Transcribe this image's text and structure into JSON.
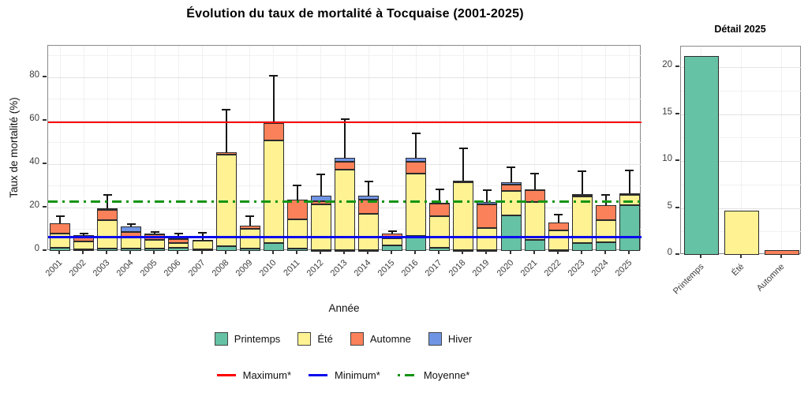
{
  "title": "Évolution du taux de mortalité à Tocquaise (2001-2025)",
  "chart_data": [
    {
      "type": "bar",
      "stacked": true,
      "title": "Évolution du taux de mortalité à Tocquaise (2001-2025)",
      "xlabel": "Année",
      "ylabel": "Taux de mortalité (%)",
      "ylim": [
        0,
        94.5
      ],
      "yticks": [
        0,
        20,
        40,
        60,
        80
      ],
      "grid": true,
      "legend_position": "bottom",
      "categories": [
        "2001",
        "2002",
        "2003",
        "2004",
        "2005",
        "2006",
        "2007",
        "2008",
        "2009",
        "2010",
        "2011",
        "2012",
        "2013",
        "2014",
        "2015",
        "2016",
        "2017",
        "2018",
        "2019",
        "2020",
        "2021",
        "2022",
        "2023",
        "2024",
        "2025"
      ],
      "series": [
        {
          "name": "Printemps",
          "color": "#66C2A5",
          "values": [
            1.5,
            0.8,
            1.0,
            1.0,
            1.0,
            1.3,
            0.7,
            2.0,
            1.0,
            3.5,
            1.0,
            0.5,
            0.5,
            0.5,
            2.5,
            7.0,
            1.5,
            0.5,
            0.5,
            16.5,
            5.0,
            0.5,
            3.5,
            4.0,
            21.2
          ]
        },
        {
          "name": "Été",
          "color": "#FEF292",
          "values": [
            6.5,
            3.6,
            13.0,
            5.2,
            4.0,
            2.5,
            4.0,
            42.5,
            9.0,
            47.5,
            13.7,
            20.8,
            37.0,
            16.5,
            3.2,
            28.5,
            14.5,
            31.0,
            10.0,
            11.0,
            17.5,
            9.0,
            21.5,
            10.0,
            4.7
          ]
        },
        {
          "name": "Automne",
          "color": "#FA8159",
          "values": [
            4.7,
            3.0,
            4.8,
            2.6,
            2.6,
            1.8,
            0.3,
            1.0,
            1.5,
            8.0,
            8.8,
            1.5,
            3.5,
            6.8,
            2.3,
            5.5,
            5.7,
            1.0,
            11.0,
            3.0,
            5.5,
            3.5,
            0.5,
            7.0,
            0.5
          ]
        },
        {
          "name": "Hiver",
          "color": "#7094E4",
          "values": [
            0,
            0,
            1.0,
            2.5,
            0.4,
            0.8,
            0,
            0,
            0,
            0,
            0,
            2.8,
            2.0,
            1.5,
            0,
            2.0,
            0.5,
            0,
            1.0,
            1.0,
            0.5,
            0,
            0.5,
            0,
            0
          ]
        }
      ],
      "error_bar_tops": [
        16.3,
        8.4,
        26,
        12.8,
        9.2,
        8.2,
        8.8,
        65.5,
        16.5,
        81,
        30.5,
        35.5,
        61,
        32.5,
        9.5,
        54.5,
        28.6,
        47.5,
        28.2,
        39,
        36,
        17,
        37,
        26,
        37.5
      ],
      "reference_lines": [
        {
          "label": "Maximum*",
          "value": 59.3,
          "color": "#FF0000",
          "style": "solid"
        },
        {
          "label": "Minimum*",
          "value": 6.5,
          "color": "#0A0AEE",
          "style": "solid"
        },
        {
          "label": "Moyenne*",
          "value": 23.0,
          "color": "#149414",
          "style": "dashdot"
        }
      ]
    },
    {
      "type": "bar",
      "title": "Détail 2025",
      "categories": [
        "Printemps",
        "Été",
        "Automne"
      ],
      "values": [
        21.2,
        4.7,
        0.5
      ],
      "colors": [
        "#66C2A5",
        "#FEF292",
        "#FA8159"
      ],
      "ylim": [
        0,
        22.2
      ],
      "yticks": [
        0,
        5,
        10,
        15,
        20
      ],
      "grid": true
    }
  ],
  "legends": {
    "seasons": [
      {
        "label": "Printemps",
        "color": "#66C2A5"
      },
      {
        "label": "Été",
        "color": "#FEF292"
      },
      {
        "label": "Automne",
        "color": "#FA8159"
      },
      {
        "label": "Hiver",
        "color": "#7094E4"
      }
    ],
    "stat_lines": [
      {
        "label": "Maximum*",
        "color": "#FF0000",
        "style": "solid"
      },
      {
        "label": "Minimum*",
        "color": "#0A0AEE",
        "style": "solid"
      },
      {
        "label": "Moyenne*",
        "color": "#149414",
        "style": "dashdot"
      }
    ]
  }
}
